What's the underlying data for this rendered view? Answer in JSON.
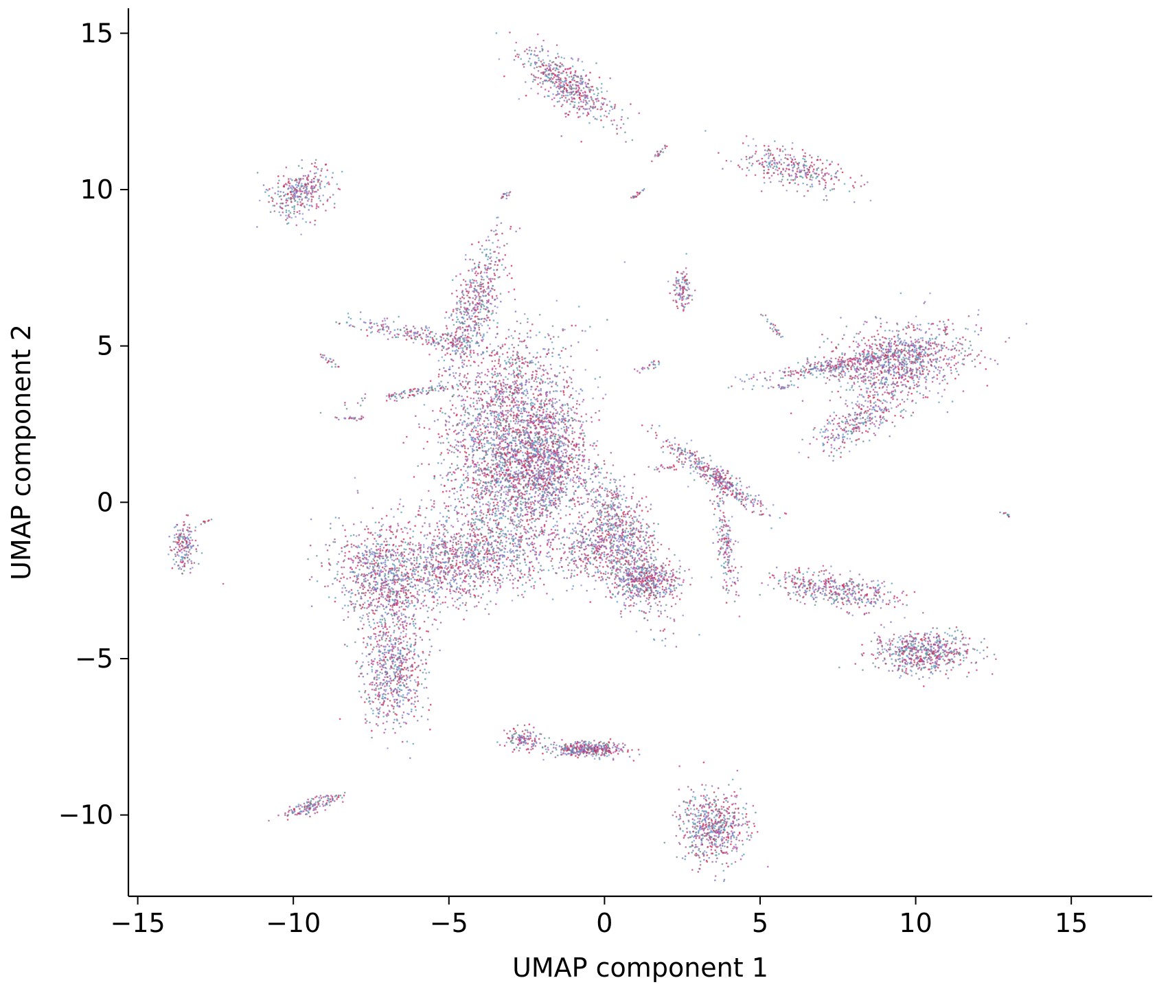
{
  "chart_data": {
    "type": "scatter",
    "title": "",
    "xlabel": "UMAP component 1",
    "ylabel": "UMAP component 2",
    "xlim": [
      -15.3,
      17.6
    ],
    "ylim": [
      -12.6,
      15.8
    ],
    "x_ticks": [
      -15,
      -10,
      -5,
      0,
      5,
      10,
      15
    ],
    "y_ticks": [
      -10,
      -5,
      0,
      5,
      10,
      15
    ],
    "x_tick_labels": [
      "−15",
      "−10",
      "−5",
      "0",
      "5",
      "10",
      "15"
    ],
    "y_tick_labels": [
      "−10",
      "−5",
      "0",
      "5",
      "10",
      "15"
    ],
    "grid": false,
    "legend": "none",
    "point_colors": [
      "#d6204e",
      "#7b6fc2",
      "#5f8f8a",
      "#c2409a",
      "#8a8fd8",
      "#4f9fc0",
      "#9a5a8c",
      "#b04060"
    ],
    "clusters": [
      {
        "name": "top-spindle",
        "x": -1.2,
        "y": 13.3,
        "sx": 0.35,
        "sy": 0.9,
        "angle": 55,
        "count": 520
      },
      {
        "name": "upper-left-wedge",
        "x": -9.8,
        "y": 9.9,
        "sx": 0.55,
        "sy": 0.35,
        "angle": 30,
        "count": 320
      },
      {
        "name": "upper-right-band",
        "x": 6.1,
        "y": 10.7,
        "sx": 0.3,
        "sy": 0.9,
        "angle": 75,
        "count": 320
      },
      {
        "name": "right-triangle-main",
        "x": 9.5,
        "y": 4.5,
        "sx": 1.1,
        "sy": 0.6,
        "angle": 10,
        "count": 1000
      },
      {
        "name": "right-triangle-tail",
        "x": 8.2,
        "y": 2.6,
        "sx": 0.3,
        "sy": 0.8,
        "angle": -60,
        "count": 300
      },
      {
        "name": "right-triangle-arm",
        "x": 7.5,
        "y": 4.4,
        "sx": 1.3,
        "sy": 0.12,
        "angle": 10,
        "count": 300
      },
      {
        "name": "lower-right-elongated",
        "x": 7.4,
        "y": -2.8,
        "sx": 1.0,
        "sy": 0.28,
        "angle": -10,
        "count": 420
      },
      {
        "name": "lower-right-blob",
        "x": 10.2,
        "y": -4.8,
        "sx": 0.8,
        "sy": 0.32,
        "angle": 0,
        "count": 600
      },
      {
        "name": "bottom-blob",
        "x": 3.5,
        "y": -10.4,
        "sx": 0.55,
        "sy": 0.55,
        "angle": 0,
        "count": 600
      },
      {
        "name": "bottom-center-strip",
        "x": -0.6,
        "y": -7.9,
        "sx": 0.6,
        "sy": 0.12,
        "angle": 0,
        "count": 380
      },
      {
        "name": "bottom-center-left",
        "x": -2.6,
        "y": -7.6,
        "sx": 0.3,
        "sy": 0.18,
        "angle": 0,
        "count": 120
      },
      {
        "name": "far-left-small",
        "x": -13.5,
        "y": -1.4,
        "sx": 0.2,
        "sy": 0.4,
        "angle": 0,
        "count": 170
      },
      {
        "name": "bottom-left-small",
        "x": -9.4,
        "y": -9.7,
        "sx": 0.5,
        "sy": 0.12,
        "angle": 20,
        "count": 150
      },
      {
        "name": "center-right-diagonal",
        "x": 3.6,
        "y": 0.8,
        "sx": 1.0,
        "sy": 0.16,
        "angle": -35,
        "count": 380
      },
      {
        "name": "center-right-vertical",
        "x": 3.9,
        "y": -1.3,
        "sx": 0.15,
        "sy": 0.9,
        "angle": 8,
        "count": 180
      },
      {
        "name": "small-center",
        "x": 2.5,
        "y": 6.8,
        "sx": 0.15,
        "sy": 0.3,
        "angle": 0,
        "count": 110
      },
      {
        "name": "main-top-spike",
        "x": -4.2,
        "y": 6.2,
        "sx": 0.35,
        "sy": 1.2,
        "angle": -20,
        "count": 550
      },
      {
        "name": "main-left-arm",
        "x": -5.8,
        "y": 5.3,
        "sx": 1.2,
        "sy": 0.15,
        "angle": -12,
        "count": 220
      },
      {
        "name": "main-center",
        "x": -3.2,
        "y": 2.7,
        "sx": 1.0,
        "sy": 1.4,
        "angle": -20,
        "count": 1500
      },
      {
        "name": "main-center-right",
        "x": -1.8,
        "y": 1.5,
        "sx": 0.6,
        "sy": 1.0,
        "angle": -10,
        "count": 800
      },
      {
        "name": "main-right-lobe",
        "x": 0.6,
        "y": -1.2,
        "sx": 0.5,
        "sy": 1.3,
        "angle": 25,
        "count": 900
      },
      {
        "name": "main-right-bottom",
        "x": 1.3,
        "y": -2.5,
        "sx": 0.6,
        "sy": 0.3,
        "angle": 0,
        "count": 350
      },
      {
        "name": "main-lower-left",
        "x": -4.6,
        "y": -1.8,
        "sx": 1.6,
        "sy": 0.7,
        "angle": 10,
        "count": 1400
      },
      {
        "name": "main-left-curve",
        "x": -7.1,
        "y": -2.5,
        "sx": 0.7,
        "sy": 1.0,
        "angle": 30,
        "count": 700
      },
      {
        "name": "main-lower-lobe",
        "x": -6.8,
        "y": -5.4,
        "sx": 0.5,
        "sy": 0.9,
        "angle": 0,
        "count": 650
      },
      {
        "name": "main-middle-mass",
        "x": -2.8,
        "y": 0.6,
        "sx": 1.0,
        "sy": 0.9,
        "angle": 0,
        "count": 900
      },
      {
        "name": "main-left-branch",
        "x": -6.2,
        "y": 3.5,
        "sx": 0.9,
        "sy": 0.08,
        "angle": 10,
        "count": 100
      },
      {
        "name": "main-low-center",
        "x": -0.5,
        "y": -1.5,
        "sx": 0.6,
        "sy": 0.5,
        "angle": 0,
        "count": 250
      },
      {
        "name": "speck-1",
        "x": -3.2,
        "y": 9.8,
        "sx": 0.08,
        "sy": 0.04,
        "angle": 30,
        "count": 15
      },
      {
        "name": "speck-2",
        "x": 1.0,
        "y": 9.8,
        "sx": 0.12,
        "sy": 0.04,
        "angle": 40,
        "count": 18
      },
      {
        "name": "speck-3",
        "x": 1.8,
        "y": 11.2,
        "sx": 0.15,
        "sy": 0.04,
        "angle": 40,
        "count": 20
      },
      {
        "name": "speck-4",
        "x": 1.4,
        "y": 4.3,
        "sx": 0.2,
        "sy": 0.05,
        "angle": 30,
        "count": 22
      },
      {
        "name": "speck-5",
        "x": -8.8,
        "y": 4.5,
        "sx": 0.2,
        "sy": 0.05,
        "angle": -30,
        "count": 20
      },
      {
        "name": "speck-6",
        "x": -8.0,
        "y": 2.7,
        "sx": 0.3,
        "sy": 0.03,
        "angle": 0,
        "count": 22
      },
      {
        "name": "speck-7",
        "x": 5.4,
        "y": 5.6,
        "sx": 0.25,
        "sy": 0.05,
        "angle": -50,
        "count": 25
      },
      {
        "name": "speck-8",
        "x": 12.9,
        "y": -0.4,
        "sx": 0.1,
        "sy": 0.03,
        "angle": -30,
        "count": 12
      },
      {
        "name": "speck-9",
        "x": 5.5,
        "y": 3.7,
        "sx": 0.35,
        "sy": 0.05,
        "angle": 0,
        "count": 24
      },
      {
        "name": "speck-10",
        "x": -12.8,
        "y": -0.6,
        "sx": 0.1,
        "sy": 0.04,
        "angle": 30,
        "count": 8
      },
      {
        "name": "speck-11",
        "x": 2.0,
        "y": 1.1,
        "sx": 0.3,
        "sy": 0.05,
        "angle": 0,
        "count": 20
      }
    ]
  }
}
